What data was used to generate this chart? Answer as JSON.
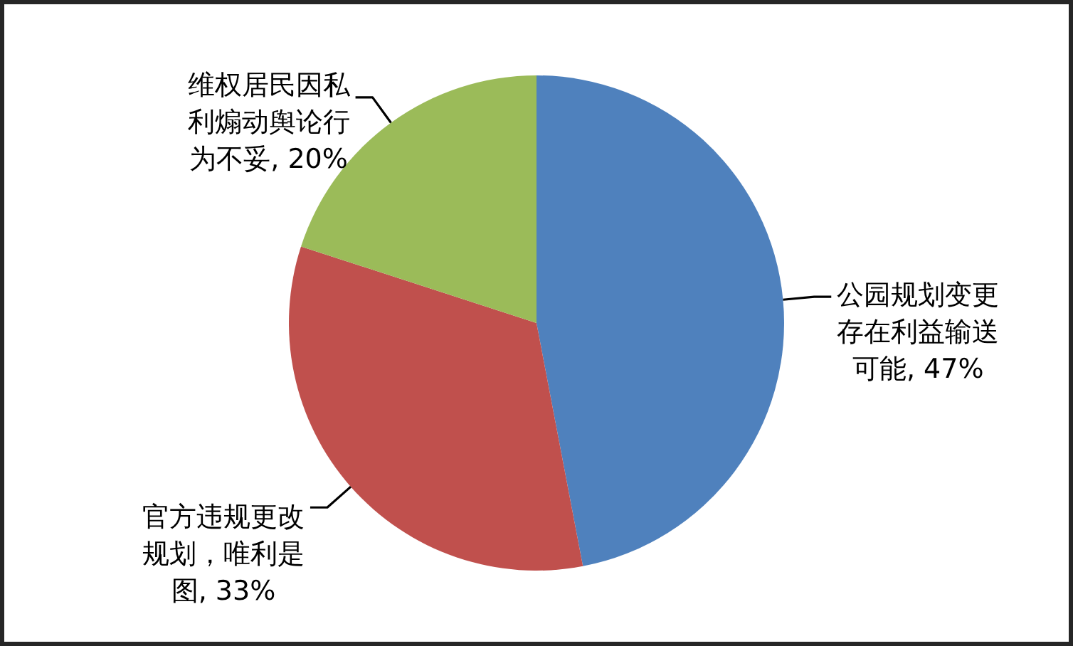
{
  "chart_data": {
    "type": "pie",
    "categories": [
      "公园规划变更存在利益输送可能",
      "官方违规更改规划，唯利是图",
      "维权居民因私利煽动舆论行为不妥"
    ],
    "values": [
      47,
      33,
      20
    ],
    "colors": [
      "#4f81bd",
      "#c0504d",
      "#9bbb59"
    ],
    "value_labels": [
      "47%",
      "33%",
      "20%"
    ]
  }
}
